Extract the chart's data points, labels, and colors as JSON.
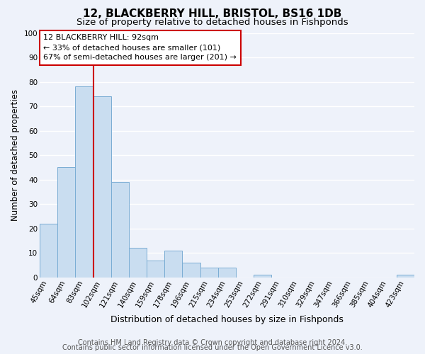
{
  "title": "12, BLACKBERRY HILL, BRISTOL, BS16 1DB",
  "subtitle": "Size of property relative to detached houses in Fishponds",
  "xlabel": "Distribution of detached houses by size in Fishponds",
  "ylabel": "Number of detached properties",
  "bar_labels": [
    "45sqm",
    "64sqm",
    "83sqm",
    "102sqm",
    "121sqm",
    "140sqm",
    "159sqm",
    "178sqm",
    "196sqm",
    "215sqm",
    "234sqm",
    "253sqm",
    "272sqm",
    "291sqm",
    "310sqm",
    "329sqm",
    "347sqm",
    "366sqm",
    "385sqm",
    "404sqm",
    "423sqm"
  ],
  "bar_values": [
    22,
    45,
    78,
    74,
    39,
    12,
    7,
    11,
    6,
    4,
    4,
    0,
    1,
    0,
    0,
    0,
    0,
    0,
    0,
    0,
    1
  ],
  "bar_color": "#c9ddf0",
  "bar_edge_color": "#7aadd4",
  "vline_color": "#cc0000",
  "vline_x": 2.5,
  "ylim": [
    0,
    100
  ],
  "annotation_title": "12 BLACKBERRY HILL: 92sqm",
  "annotation_line1": "← 33% of detached houses are smaller (101)",
  "annotation_line2": "67% of semi-detached houses are larger (201) →",
  "annotation_box_facecolor": "#ffffff",
  "annotation_box_edgecolor": "#cc0000",
  "footer_line1": "Contains HM Land Registry data © Crown copyright and database right 2024.",
  "footer_line2": "Contains public sector information licensed under the Open Government Licence v3.0.",
  "background_color": "#eef2fa",
  "grid_color": "#ffffff",
  "title_fontsize": 11,
  "subtitle_fontsize": 9.5,
  "xlabel_fontsize": 9,
  "ylabel_fontsize": 8.5,
  "tick_fontsize": 7.5,
  "annotation_fontsize": 8,
  "footer_fontsize": 7
}
